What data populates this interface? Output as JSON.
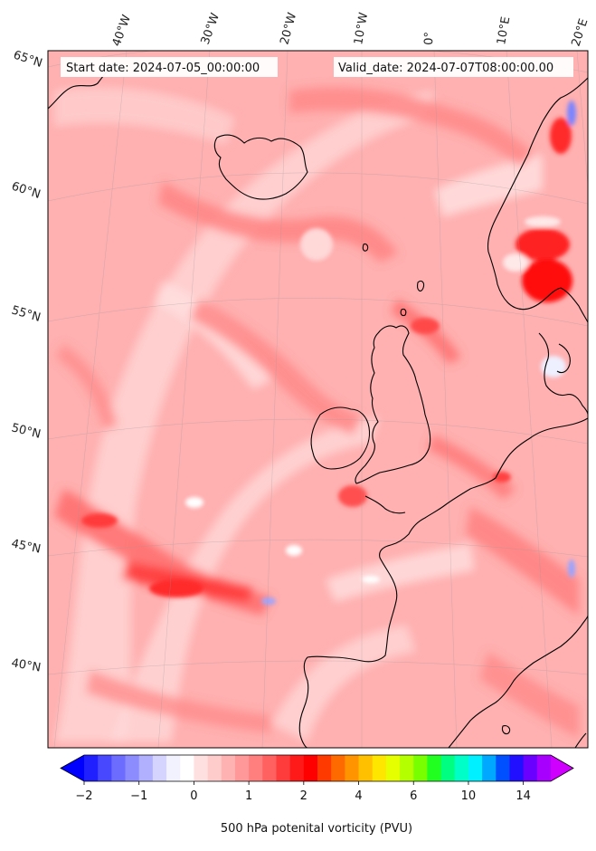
{
  "header": {
    "start_date": "Start date: 2024-07-05_00:00:00",
    "valid_date": "Valid_date: 2024-07-07T08:00:00.00"
  },
  "map": {
    "field": "500 hPa potential vorticity",
    "background_color": "#ffb0b0",
    "lon_labels": [
      "40°W",
      "30°W",
      "20°W",
      "10°W",
      "0°",
      "10°E",
      "20°E"
    ],
    "lat_labels": [
      "65°N",
      "60°N",
      "55°N",
      "50°N",
      "45°N",
      "40°N"
    ]
  },
  "colorbar": {
    "label": "500 hPa potenital vorticity (PVU)",
    "tick_labels": [
      "−2",
      "−1",
      "0",
      "1",
      "2",
      "4",
      "6",
      "10",
      "14"
    ],
    "colors": [
      "#0000ff",
      "#2020ff",
      "#4848ff",
      "#6c6cff",
      "#8c8cff",
      "#b0b0ff",
      "#d4d4ff",
      "#f2f2ff",
      "#ffffff",
      "#ffe0e0",
      "#ffcccc",
      "#ffb2b2",
      "#ff9898",
      "#ff7e7e",
      "#ff6060",
      "#ff3c3c",
      "#ff1a1a",
      "#ff0000",
      "#ff3a00",
      "#ff6a00",
      "#ff9400",
      "#ffc000",
      "#ffe600",
      "#e6ff00",
      "#b4ff00",
      "#78ff00",
      "#20ff20",
      "#00ff80",
      "#00ffc8",
      "#00f0ff",
      "#00a8ff",
      "#0050ff",
      "#2010ff",
      "#6a00ff",
      "#a800ff",
      "#d000ff"
    ]
  }
}
